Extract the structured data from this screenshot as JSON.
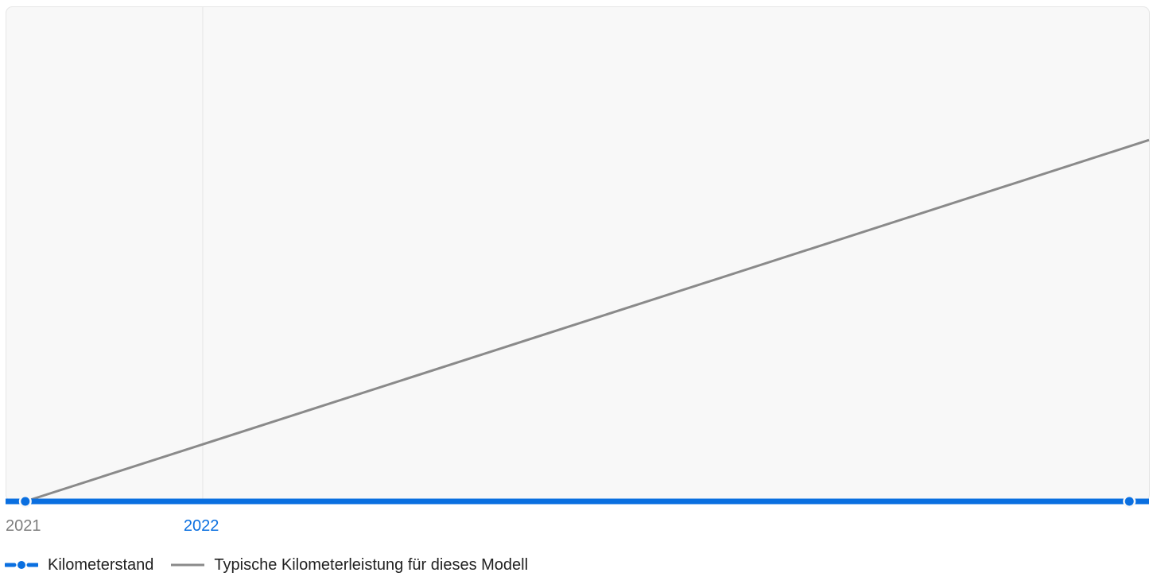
{
  "chart_data": {
    "type": "line",
    "title": "",
    "xlabel": "",
    "ylabel": "",
    "x_ticks": [
      {
        "label": "2021",
        "value": 2021.0,
        "highlight": false
      },
      {
        "label": "2022",
        "value": 2022.0,
        "highlight": true
      }
    ],
    "xlim": [
      2021.0,
      2026.8
    ],
    "ylim": [
      0,
      100
    ],
    "grid": "vertical at year ticks",
    "legend_position": "bottom-left",
    "series": [
      {
        "name": "Kilometerstand",
        "style": "dashed-dot",
        "color": "#0A6FE0",
        "points": [
          {
            "x": 2021.1,
            "y": 0
          },
          {
            "x": 2026.7,
            "y": 0
          }
        ],
        "marker_points": [
          2021.1,
          2026.7
        ]
      },
      {
        "name": "Typische Kilometerleistung für dieses Modell",
        "style": "solid",
        "color": "#8A8A8A",
        "points": [
          {
            "x": 2021.1,
            "y": 0
          },
          {
            "x": 2026.8,
            "y": 73
          }
        ]
      }
    ]
  },
  "legend": {
    "items": [
      {
        "label": "Kilometerstand",
        "color": "#0A6FE0",
        "style": "dashed-dot"
      },
      {
        "label": "Typische Kilometerleistung für dieses Modell",
        "color": "#8A8A8A",
        "style": "solid"
      }
    ]
  },
  "colors": {
    "panel_background": "#F8F8F8",
    "panel_border": "#E6E6E6",
    "grid": "#E7E7E7",
    "tick_default": "#7E7E7E",
    "tick_highlight": "#0A6FE0"
  }
}
